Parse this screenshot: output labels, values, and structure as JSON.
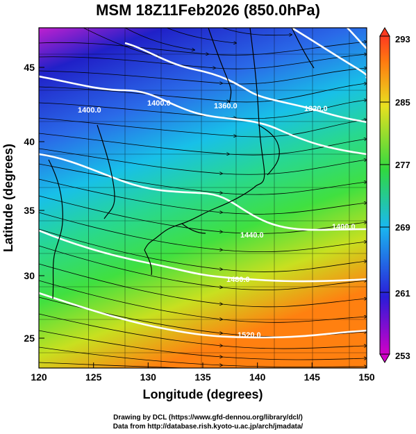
{
  "title": "MSM 18Z11Feb2026 (850.0hPa)",
  "x_axis": {
    "label": "Longitude (degrees)",
    "ticks": [
      "120",
      "125",
      "130",
      "135",
      "140",
      "145",
      "150"
    ]
  },
  "y_axis": {
    "label": "Latitude  (degrees)",
    "ticks": [
      "25",
      "30",
      "35",
      "40",
      "45"
    ]
  },
  "colorbar": {
    "ticks": [
      "253",
      "261",
      "269",
      "277",
      "285",
      "293"
    ],
    "colors": [
      "#d000c8",
      "#2a1cd8",
      "#1ab8f0",
      "#30d840",
      "#e8e020",
      "#ff7a10",
      "#ff3a20"
    ]
  },
  "contour_labels": [
    "1400.0",
    "1400.0",
    "1360.0",
    "1320.0",
    "1400.0",
    "1440.0",
    "1480.0",
    "1520.0"
  ],
  "credits": {
    "line1": "Drawing by DCL (https://www.gfd-dennou.org/library/dcl/)",
    "line2": "Data from http://database.rish.kyoto-u.ac.jp/arch/jmadata/"
  },
  "colors": {
    "contour": "#ffffff",
    "streamline": "#000000",
    "coastline": "#000000"
  }
}
